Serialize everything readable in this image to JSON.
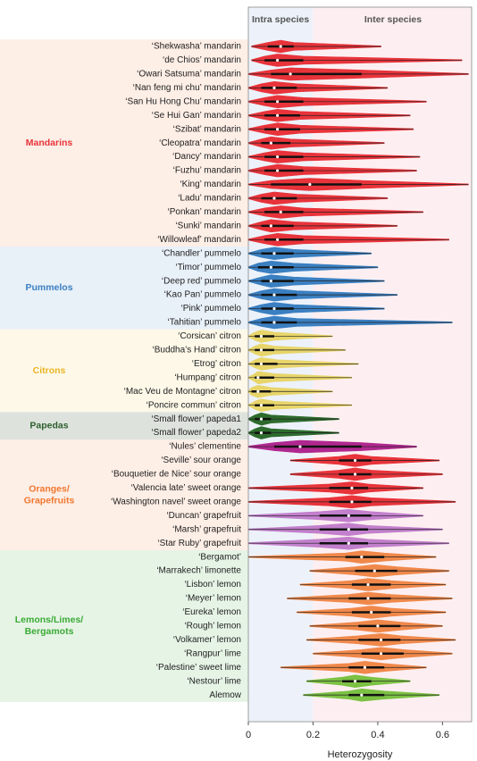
{
  "chart_data": {
    "type": "violin",
    "x_label": "Heterozygosity",
    "xlim": [
      0,
      0.69
    ],
    "xticks": [
      0,
      0.2,
      0.4,
      0.6
    ],
    "region_split": 0.2,
    "annotations": [
      "Intra species",
      "Inter species"
    ],
    "groups": [
      {
        "name": [
          "Mandarins"
        ],
        "color": "#e8333a",
        "background": "#fdeee6",
        "accessions": [
          {
            "label": "‘Shekwasha’ mandarin",
            "color": "#e8333a",
            "min": 0.01,
            "q1": 0.06,
            "median": 0.1,
            "q3": 0.14,
            "max": 0.41
          },
          {
            "label": "‘de Chios’ mandarin",
            "color": "#e8333a",
            "min": 0.01,
            "q1": 0.05,
            "median": 0.09,
            "q3": 0.17,
            "max": 0.66
          },
          {
            "label": "‘Owari Satsuma’ mandarin",
            "color": "#e8333a",
            "min": 0.0,
            "q1": 0.07,
            "median": 0.13,
            "q3": 0.35,
            "max": 0.68
          },
          {
            "label": "‘Nan feng mi chu’ mandarin",
            "color": "#e8333a",
            "min": 0.0,
            "q1": 0.04,
            "median": 0.08,
            "q3": 0.15,
            "max": 0.43
          },
          {
            "label": "‘San Hu Hong Chu’ mandarin",
            "color": "#e8333a",
            "min": 0.0,
            "q1": 0.05,
            "median": 0.09,
            "q3": 0.17,
            "max": 0.55
          },
          {
            "label": "‘Se Hui Gan’ mandarin",
            "color": "#e8333a",
            "min": 0.0,
            "q1": 0.05,
            "median": 0.09,
            "q3": 0.16,
            "max": 0.5
          },
          {
            "label": "‘Szibat’ mandarin",
            "color": "#e8333a",
            "min": 0.0,
            "q1": 0.05,
            "median": 0.09,
            "q3": 0.16,
            "max": 0.51
          },
          {
            "label": "‘Cleopatra’ mandarin",
            "color": "#e8333a",
            "min": 0.0,
            "q1": 0.04,
            "median": 0.07,
            "q3": 0.13,
            "max": 0.42
          },
          {
            "label": "‘Dancy’ mandarin",
            "color": "#e8333a",
            "min": 0.0,
            "q1": 0.05,
            "median": 0.09,
            "q3": 0.17,
            "max": 0.53
          },
          {
            "label": "‘Fuzhu’ mandarin",
            "color": "#e8333a",
            "min": 0.0,
            "q1": 0.05,
            "median": 0.09,
            "q3": 0.17,
            "max": 0.52
          },
          {
            "label": "‘King’ mandarin",
            "color": "#e8333a",
            "min": 0.0,
            "q1": 0.07,
            "median": 0.19,
            "q3": 0.35,
            "max": 0.68
          },
          {
            "label": "‘Ladu’ mandarin",
            "color": "#e8333a",
            "min": 0.0,
            "q1": 0.04,
            "median": 0.08,
            "q3": 0.15,
            "max": 0.43
          },
          {
            "label": "‘Ponkan’ mandarin",
            "color": "#e8333a",
            "min": 0.0,
            "q1": 0.05,
            "median": 0.1,
            "q3": 0.17,
            "max": 0.54
          },
          {
            "label": "‘Sunki’ mandarin",
            "color": "#e8333a",
            "min": 0.0,
            "q1": 0.04,
            "median": 0.07,
            "q3": 0.14,
            "max": 0.46
          },
          {
            "label": "‘Willowleaf’ mandarin",
            "color": "#e8333a",
            "min": 0.0,
            "q1": 0.05,
            "median": 0.09,
            "q3": 0.17,
            "max": 0.62
          }
        ]
      },
      {
        "name": [
          "Pummelos"
        ],
        "color": "#3a7fc1",
        "background": "#e8f0f8",
        "accessions": [
          {
            "label": "‘Chandler’ pummelo",
            "color": "#3a7fc1",
            "min": 0.0,
            "q1": 0.04,
            "median": 0.08,
            "q3": 0.14,
            "max": 0.38
          },
          {
            "label": "‘Timor’ pummelo",
            "color": "#3a7fc1",
            "min": 0.0,
            "q1": 0.03,
            "median": 0.07,
            "q3": 0.14,
            "max": 0.4
          },
          {
            "label": "‘Deep red’ pummelo",
            "color": "#3a7fc1",
            "min": 0.0,
            "q1": 0.04,
            "median": 0.07,
            "q3": 0.14,
            "max": 0.42
          },
          {
            "label": "‘Kao Pan’ pummelo",
            "color": "#3a7fc1",
            "min": 0.0,
            "q1": 0.04,
            "median": 0.08,
            "q3": 0.15,
            "max": 0.46
          },
          {
            "label": "‘Pink’ pummelo",
            "color": "#3a7fc1",
            "min": 0.0,
            "q1": 0.04,
            "median": 0.08,
            "q3": 0.14,
            "max": 0.42
          },
          {
            "label": "‘Tahitian’ pummelo",
            "color": "#3a7fc1",
            "min": 0.0,
            "q1": 0.04,
            "median": 0.08,
            "q3": 0.15,
            "max": 0.63
          }
        ]
      },
      {
        "name": [
          "Citrons"
        ],
        "color": "#e9b526",
        "background": "#fdf8e8",
        "accessions": [
          {
            "label": "‘Corsican’ citron",
            "color": "#e8d56a",
            "min": 0.0,
            "q1": 0.02,
            "median": 0.04,
            "q3": 0.08,
            "max": 0.26
          },
          {
            "label": "‘Buddha’s Hand’ citron",
            "color": "#e8d56a",
            "min": 0.0,
            "q1": 0.02,
            "median": 0.04,
            "q3": 0.08,
            "max": 0.3
          },
          {
            "label": "‘Etrog’ citron",
            "color": "#e8d56a",
            "min": 0.0,
            "q1": 0.02,
            "median": 0.04,
            "q3": 0.09,
            "max": 0.34
          },
          {
            "label": "‘Humpang’ citron",
            "color": "#e8d56a",
            "min": 0.0,
            "q1": 0.02,
            "median": 0.03,
            "q3": 0.08,
            "max": 0.32
          },
          {
            "label": "‘Mac Veu de Montagne’ citron",
            "color": "#e8d56a",
            "min": 0.0,
            "q1": 0.01,
            "median": 0.03,
            "q3": 0.07,
            "max": 0.26
          },
          {
            "label": "‘Poncire commun’ citron",
            "color": "#e8d56a",
            "min": 0.0,
            "q1": 0.02,
            "median": 0.04,
            "q3": 0.08,
            "max": 0.32
          }
        ]
      },
      {
        "name": [
          "Papedas"
        ],
        "color": "#2d5e2d",
        "background": "#dde3dc",
        "accessions": [
          {
            "label": "‘Small flower’ papeda1",
            "color": "#2d6b2d",
            "min": 0.0,
            "q1": 0.02,
            "median": 0.04,
            "q3": 0.07,
            "max": 0.28
          },
          {
            "label": "‘Small flower’ papeda2",
            "color": "#2d6b2d",
            "min": 0.0,
            "q1": 0.02,
            "median": 0.04,
            "q3": 0.07,
            "max": 0.28
          }
        ]
      },
      {
        "name": [
          "Oranges/",
          "Grapefruits"
        ],
        "color": "#f0772e",
        "background": "#fdeee6",
        "accessions": [
          {
            "label": "‘Nules’ clementine",
            "color": "#b0288f",
            "min": 0.0,
            "q1": 0.08,
            "median": 0.16,
            "q3": 0.35,
            "max": 0.52
          },
          {
            "label": "‘Seville’ sour orange",
            "color": "#e8333a",
            "min": 0.13,
            "q1": 0.28,
            "median": 0.33,
            "q3": 0.38,
            "max": 0.59
          },
          {
            "label": "‘Bouquetier de Nice’ sour orange",
            "color": "#e8333a",
            "min": 0.13,
            "q1": 0.28,
            "median": 0.33,
            "q3": 0.38,
            "max": 0.6
          },
          {
            "label": "‘Valencia late’ sweet orange",
            "color": "#e8333a",
            "min": 0.0,
            "q1": 0.25,
            "median": 0.32,
            "q3": 0.37,
            "max": 0.54
          },
          {
            "label": "‘Washington navel’ sweet orange",
            "color": "#e8333a",
            "min": 0.0,
            "q1": 0.25,
            "median": 0.32,
            "q3": 0.38,
            "max": 0.64
          },
          {
            "label": "‘Duncan’ grapefruit",
            "color": "#c27fcc",
            "min": 0.0,
            "q1": 0.22,
            "median": 0.31,
            "q3": 0.38,
            "max": 0.54
          },
          {
            "label": "‘Marsh’ grapefruit",
            "color": "#c27fcc",
            "min": 0.0,
            "q1": 0.22,
            "median": 0.31,
            "q3": 0.37,
            "max": 0.6
          },
          {
            "label": "‘Star Ruby’ grapefruit",
            "color": "#c27fcc",
            "min": 0.0,
            "q1": 0.22,
            "median": 0.31,
            "q3": 0.37,
            "max": 0.62
          }
        ]
      },
      {
        "name": [
          "Lemons/Limes/",
          "Bergamots"
        ],
        "color": "#3aaa35",
        "background": "#e6f4e6",
        "accessions": [
          {
            "label": "‘Bergamot’",
            "color": "#f0884a",
            "min": 0.0,
            "q1": 0.3,
            "median": 0.35,
            "q3": 0.42,
            "max": 0.58
          },
          {
            "label": "‘Marrakech’ limonette",
            "color": "#f0884a",
            "min": 0.19,
            "q1": 0.33,
            "median": 0.39,
            "q3": 0.46,
            "max": 0.62
          },
          {
            "label": "‘Lisbon’ lemon",
            "color": "#f0884a",
            "min": 0.16,
            "q1": 0.32,
            "median": 0.37,
            "q3": 0.44,
            "max": 0.61
          },
          {
            "label": "‘Meyer’ lemon",
            "color": "#f0884a",
            "min": 0.12,
            "q1": 0.31,
            "median": 0.37,
            "q3": 0.44,
            "max": 0.63
          },
          {
            "label": "‘Eureka’ lemon",
            "color": "#f0884a",
            "min": 0.15,
            "q1": 0.32,
            "median": 0.38,
            "q3": 0.44,
            "max": 0.61
          },
          {
            "label": "‘Rough’ lemon",
            "color": "#f0884a",
            "min": 0.19,
            "q1": 0.34,
            "median": 0.4,
            "q3": 0.47,
            "max": 0.6
          },
          {
            "label": "‘Volkamer’ lemon",
            "color": "#f0884a",
            "min": 0.18,
            "q1": 0.34,
            "median": 0.41,
            "q3": 0.47,
            "max": 0.64
          },
          {
            "label": "‘Rangpur’ lime",
            "color": "#f0884a",
            "min": 0.2,
            "q1": 0.35,
            "median": 0.41,
            "q3": 0.48,
            "max": 0.63
          },
          {
            "label": "‘Palestine’ sweet lime",
            "color": "#f0884a",
            "min": 0.1,
            "q1": 0.31,
            "median": 0.36,
            "q3": 0.42,
            "max": 0.55
          },
          {
            "label": "‘Nestour’ lime",
            "color": "#7bc143",
            "min": 0.18,
            "q1": 0.29,
            "median": 0.33,
            "q3": 0.38,
            "max": 0.5
          },
          {
            "label": "Alemow",
            "color": "#7bc143",
            "min": 0.17,
            "q1": 0.31,
            "median": 0.35,
            "q3": 0.42,
            "max": 0.59
          }
        ]
      }
    ]
  }
}
